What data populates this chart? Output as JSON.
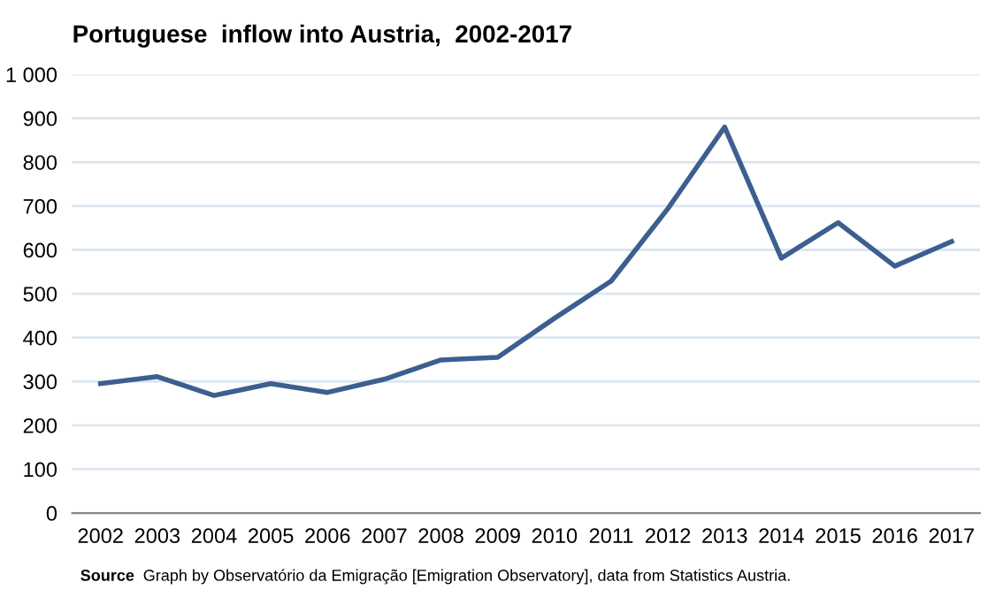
{
  "chart_data": {
    "type": "line",
    "title": "Portuguese  inflow into Austria,  2002-2017",
    "categories": [
      "2002",
      "2003",
      "2004",
      "2005",
      "2006",
      "2007",
      "2008",
      "2009",
      "2010",
      "2011",
      "2012",
      "2013",
      "2014",
      "2015",
      "2016",
      "2017"
    ],
    "series": [
      {
        "color": "#3c5f8f",
        "values": [
          295,
          311,
          268,
          295,
          275,
          305,
          349,
          355,
          444,
          529,
          694,
          880,
          581,
          662,
          563,
          619
        ]
      }
    ],
    "ylim": [
      0,
      1000
    ],
    "yticks": [
      0,
      100,
      200,
      300,
      400,
      500,
      600,
      700,
      800,
      900,
      {
        "value": 1000,
        "label": "1 000"
      }
    ],
    "grid": "y",
    "legend": false,
    "marker": "none",
    "line_style": "solid",
    "annotations": [
      "Source",
      "Graph by Observatório da Emigração [Emigration Observatory], data from Statistics Austria."
    ]
  }
}
